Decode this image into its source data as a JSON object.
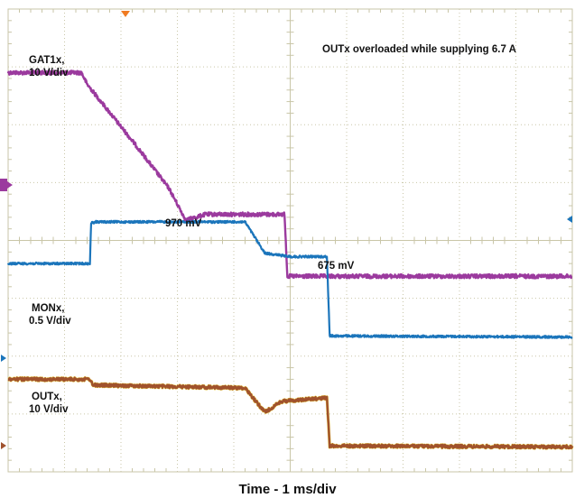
{
  "chart_data": {
    "type": "line",
    "xlabel": "Time - 1 ms/div",
    "title": "OUTx overloaded while supplying 6.7 A",
    "x_unit": "ms",
    "grid": true,
    "divisions": {
      "x": 10,
      "y": 8
    },
    "series": [
      {
        "name": "GAT1x",
        "scale_label": "10 V/div",
        "color": "#9B3A9E",
        "x": [
          0,
          1.3,
          1.4,
          2.3,
          2.85,
          3.15,
          3.5,
          4.9,
          4.95,
          10
        ],
        "y": [
          6.9,
          6.9,
          6.7,
          5.6,
          4.9,
          4.35,
          4.45,
          4.45,
          3.38,
          3.38
        ]
      },
      {
        "name": "MONx",
        "scale_label": "0.5 V/div",
        "color": "#1B75BB",
        "x": [
          0,
          1.45,
          1.47,
          1.55,
          4.2,
          4.55,
          5.0,
          5.65,
          5.7,
          10
        ],
        "y": [
          3.6,
          3.6,
          4.3,
          4.32,
          4.32,
          3.78,
          3.72,
          3.72,
          2.35,
          2.33
        ]
      },
      {
        "name": "OUTx",
        "scale_label": "10 V/div",
        "color": "#A0522D",
        "x": [
          0,
          1.45,
          1.5,
          4.2,
          4.55,
          4.85,
          5.65,
          5.7,
          10
        ],
        "y": [
          1.6,
          1.6,
          1.5,
          1.45,
          1.03,
          1.22,
          1.28,
          0.45,
          0.43
        ]
      }
    ],
    "annotations": [
      {
        "text": "970 mV",
        "x": 2.2,
        "y": 4.55
      },
      {
        "text": "675 mV",
        "x": 3.95,
        "y": 3.95
      }
    ]
  },
  "labels": {
    "gate_name": "GAT1x,",
    "gate_scale": "10 V/div",
    "mon_name": "MONx,",
    "mon_scale": "0.5 V/div",
    "out_name": "OUTx,",
    "out_scale": "10 V/div",
    "overload": "OUTx overloaded while supplying 6.7 A",
    "mon_high": "970 mV",
    "mon_mid": "675 mV"
  },
  "xlabel": "Time - 1 ms/div"
}
